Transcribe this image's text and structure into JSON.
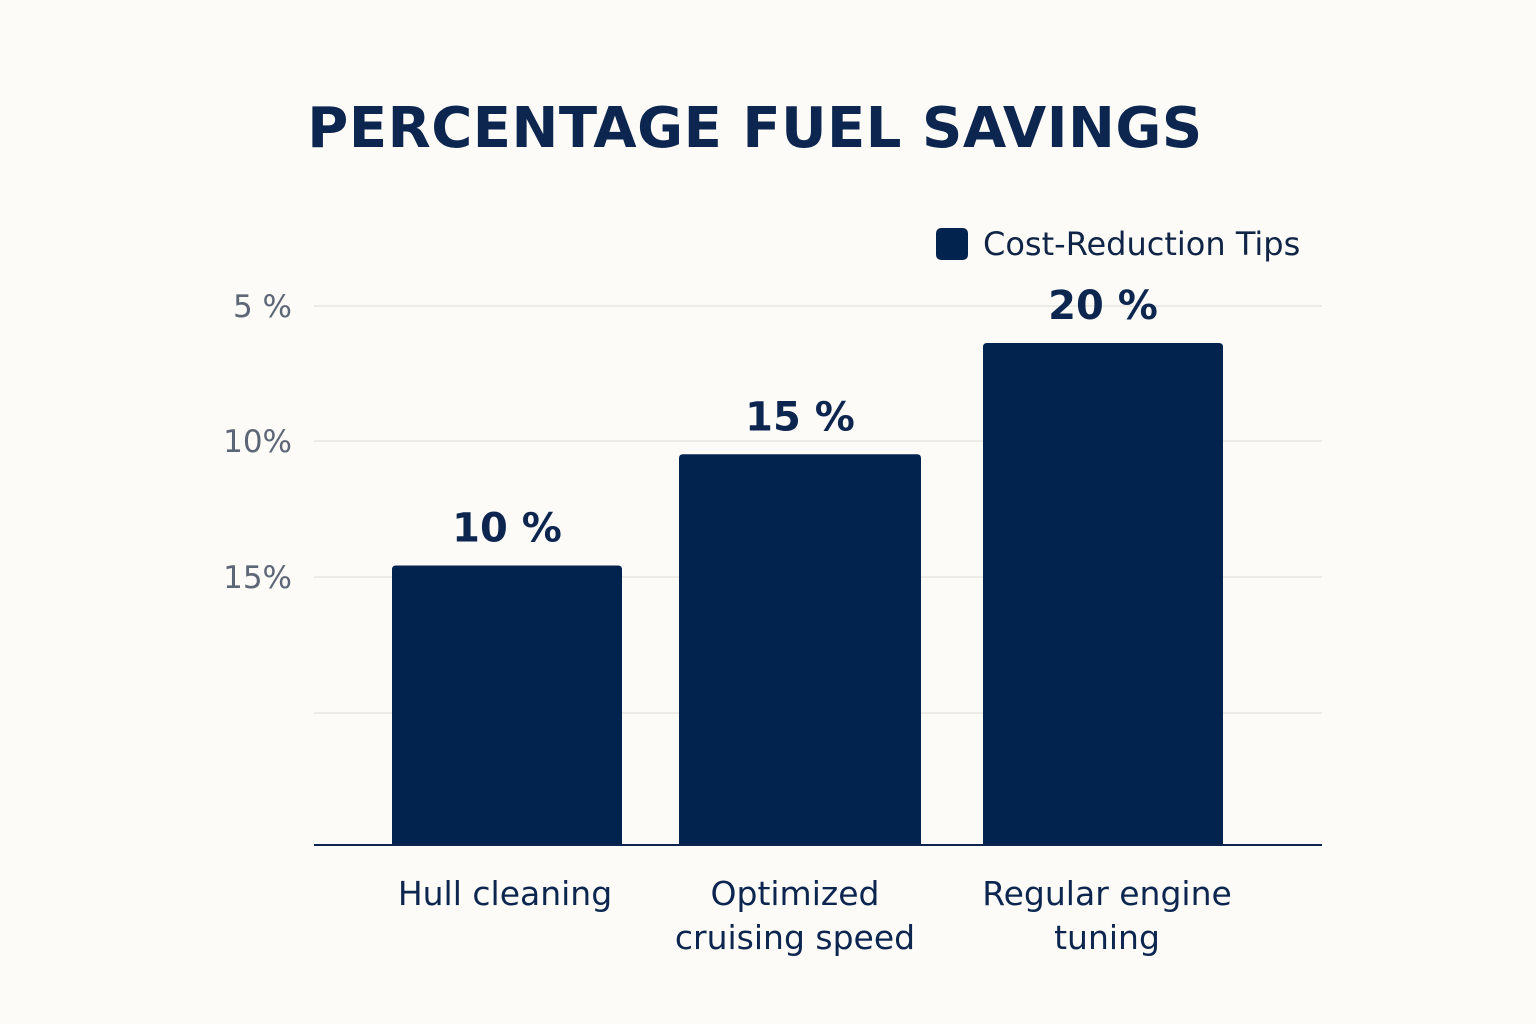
{
  "chart_data": {
    "type": "bar",
    "title": "PERCENTAGE FUEL SAVINGS",
    "xlabel": "",
    "ylabel": "",
    "categories": [
      "Hull cleaning",
      "Optimized cruising speed",
      "Regular engine tuning"
    ],
    "category_lines": [
      [
        "Hull cleaning"
      ],
      [
        "Optimized",
        "cruising speed"
      ],
      [
        "Regular engine",
        "tuning"
      ]
    ],
    "series": [
      {
        "name": "Cost-Reduction Tips",
        "values": [
          10,
          15,
          20
        ],
        "value_labels": [
          "10 %",
          "15 %",
          "20 %"
        ],
        "color": "#03234f"
      }
    ],
    "y_tick_labels": [
      "5 %",
      "10%",
      "15%"
    ],
    "grid": true,
    "legend": "top-right"
  }
}
